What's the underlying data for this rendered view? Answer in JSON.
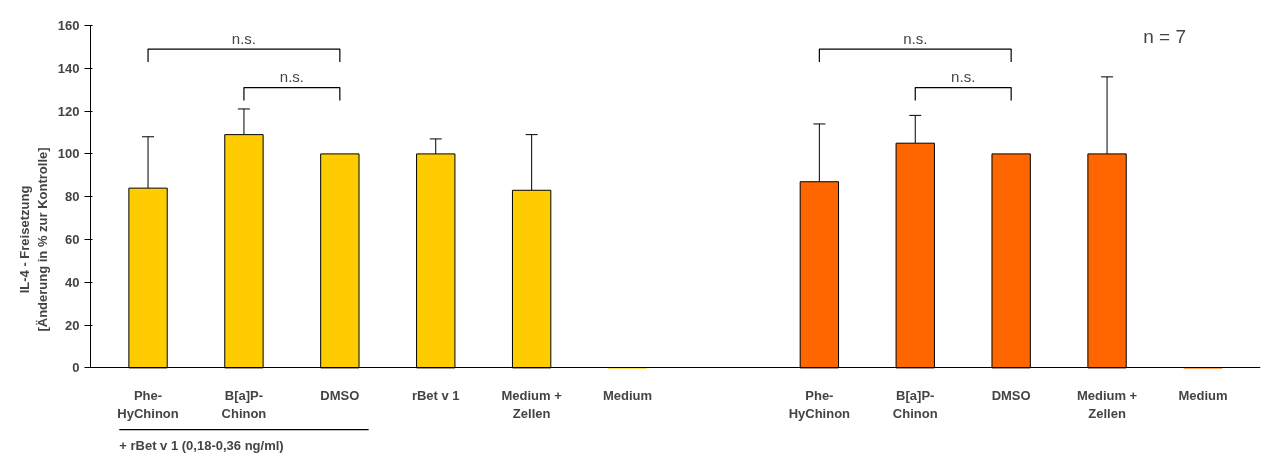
{
  "chart_data": {
    "type": "bar",
    "ylabel": "IL-4 - Freisetzung\n[Änderung in % zur Kontrolle]",
    "categories": [
      "Phe-\nHyChinon",
      "B[a]P-\nChinon",
      "DMSO",
      "rBet v 1",
      "Medium +\nZellen",
      "Medium",
      null,
      "Phe-\nHyChinon",
      "B[a]P-\nChinon",
      "DMSO",
      "Medium +\nZellen",
      "Medium"
    ],
    "series": [
      {
        "color": "#ffcc00",
        "values": [
          84,
          109,
          100,
          100,
          83,
          0,
          null,
          null,
          null,
          null,
          null,
          null
        ],
        "errors": [
          [
            84,
            108
          ],
          [
            109,
            121
          ],
          null,
          [
            100,
            107
          ],
          [
            83,
            109
          ],
          null,
          null,
          null,
          null,
          null,
          null,
          null
        ]
      },
      {
        "color": "#ff6600",
        "values": [
          null,
          null,
          null,
          null,
          null,
          null,
          null,
          87,
          105,
          100,
          100,
          0
        ],
        "errors": [
          null,
          null,
          null,
          null,
          null,
          null,
          null,
          [
            87,
            114
          ],
          [
            105,
            118
          ],
          null,
          [
            100,
            136
          ],
          null
        ]
      }
    ],
    "ylim": [
      0,
      160
    ],
    "yticks": [
      0,
      20,
      40,
      60,
      80,
      100,
      120,
      140,
      160
    ],
    "grid": false,
    "annotations": [
      "n.s.",
      "n.s.",
      "n.s.",
      "n.s.",
      "n = 7",
      "+ rBet v 1 (0,18-0,36 ng/ml)"
    ]
  }
}
